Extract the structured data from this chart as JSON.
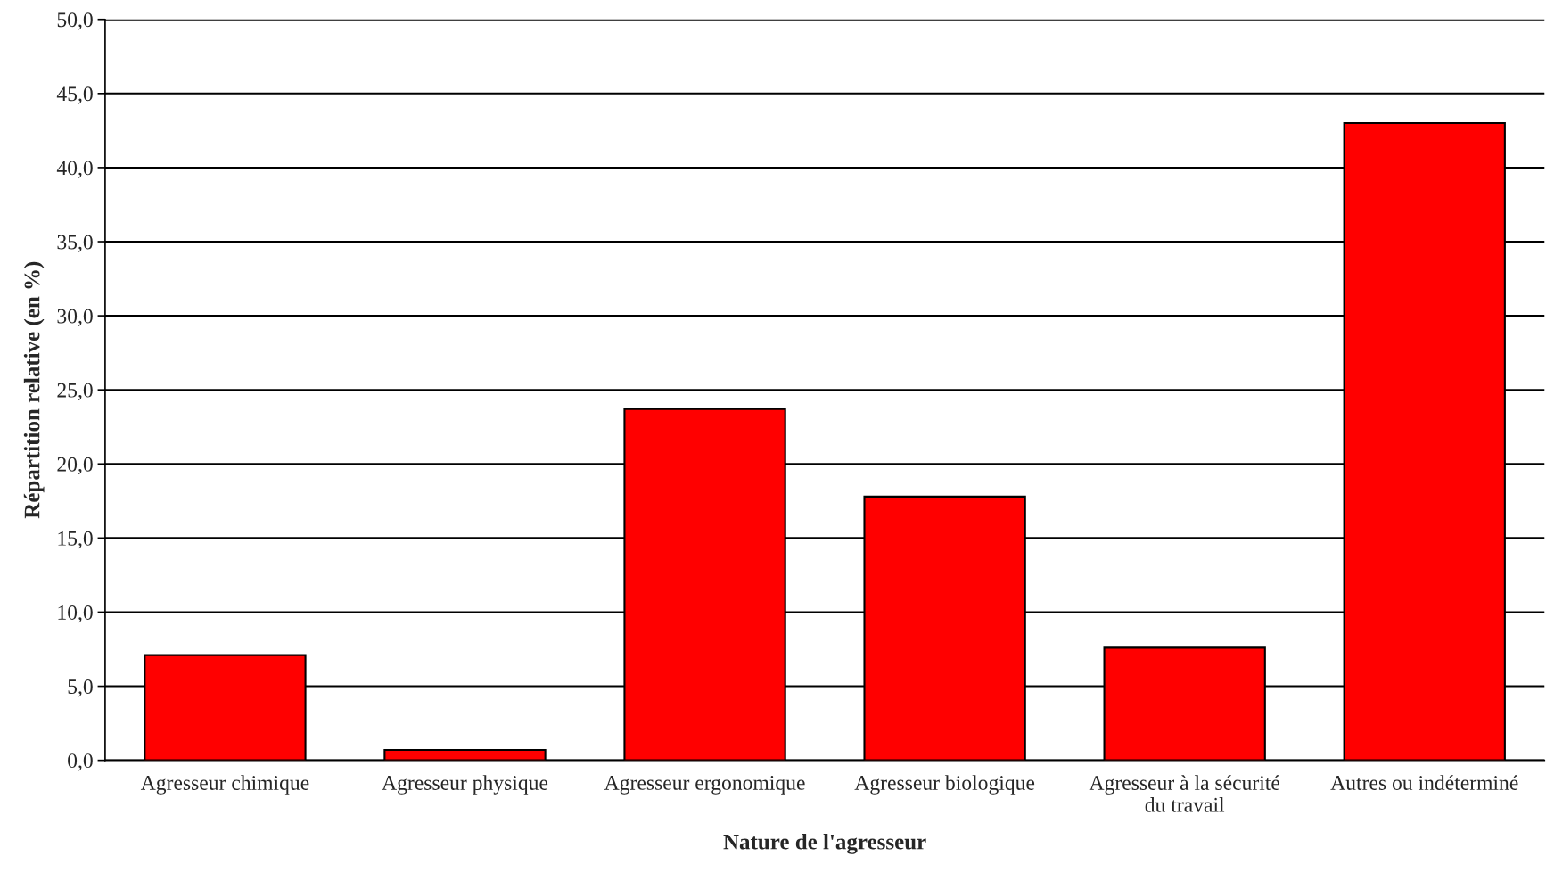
{
  "chart_data": {
    "type": "bar",
    "categories": [
      "Agresseur chimique",
      "Agresseur physique",
      "Agresseur ergonomique",
      "Agresseur biologique",
      "Agresseur à la sécurité\ndu travail",
      "Autres ou indéterminé"
    ],
    "values": [
      7.1,
      0.7,
      23.7,
      17.8,
      7.6,
      43.0
    ],
    "color": "#ff0000",
    "xlabel": "Nature de l'agresseur",
    "ylabel": "Répartition relative (en %)",
    "ylim": [
      0,
      50
    ],
    "yticks": [
      {
        "value": 0,
        "label": "0,0"
      },
      {
        "value": 5,
        "label": "5,0"
      },
      {
        "value": 10,
        "label": "10,0"
      },
      {
        "value": 15,
        "label": "15,0"
      },
      {
        "value": 20,
        "label": "20,0"
      },
      {
        "value": 25,
        "label": "25,0"
      },
      {
        "value": 30,
        "label": "30,0"
      },
      {
        "value": 35,
        "label": "35,0"
      },
      {
        "value": 40,
        "label": "40,0"
      },
      {
        "value": 45,
        "label": "45,0"
      },
      {
        "value": 50,
        "label": "50,0"
      }
    ],
    "grid": "y",
    "legend": false
  }
}
